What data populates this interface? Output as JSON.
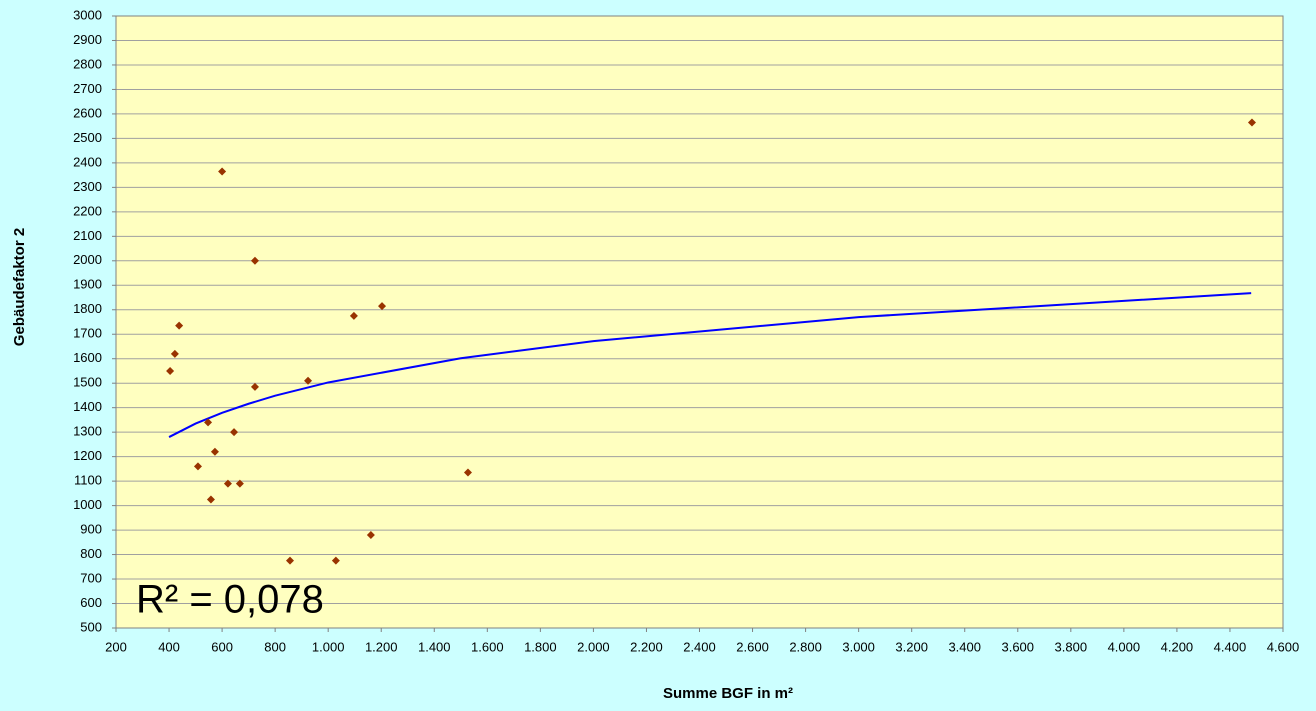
{
  "chart_data": {
    "type": "scatter",
    "x_label": "Summe BGF in m²",
    "y_label": "Gebäudefaktor 2",
    "annotation": "R² = 0,078",
    "color": "#993300",
    "trend_color": "#0000ff",
    "x": [
      404,
      422,
      438,
      509,
      547,
      558,
      573,
      600,
      622,
      645,
      667,
      724,
      724,
      856,
      924,
      1029,
      1097,
      1161,
      1203,
      1527,
      4483
    ],
    "values": [
      1550,
      1620,
      1735,
      1160,
      1340,
      1025,
      1220,
      2365,
      1090,
      1300,
      1090,
      2000,
      1485,
      775,
      1510,
      775,
      1775,
      880,
      1815,
      1135,
      2565
    ],
    "trendline": {
      "x": [
        400,
        500,
        600,
        700,
        800,
        1000,
        1500,
        2000,
        3000,
        4480
      ],
      "values": [
        1280,
        1335,
        1379,
        1416,
        1449,
        1503,
        1602,
        1672,
        1770,
        1868
      ]
    },
    "xlim": [
      200,
      4600
    ],
    "ylim": [
      500,
      3000
    ],
    "xticks": [
      200,
      400,
      600,
      800,
      {
        "value": 1000,
        "label": "1.000"
      },
      {
        "value": 1200,
        "label": "1.200"
      },
      {
        "value": 1400,
        "label": "1.400"
      },
      {
        "value": 1600,
        "label": "1.600"
      },
      {
        "value": 1800,
        "label": "1.800"
      },
      {
        "value": 2000,
        "label": "2.000"
      },
      {
        "value": 2200,
        "label": "2.200"
      },
      {
        "value": 2400,
        "label": "2.400"
      },
      {
        "value": 2600,
        "label": "2.600"
      },
      {
        "value": 2800,
        "label": "2.800"
      },
      {
        "value": 3000,
        "label": "3.000"
      },
      {
        "value": 3200,
        "label": "3.200"
      },
      {
        "value": 3400,
        "label": "3.400"
      },
      {
        "value": 3600,
        "label": "3.600"
      },
      {
        "value": 3800,
        "label": "3.800"
      },
      {
        "value": 4000,
        "label": "4.000"
      },
      {
        "value": 4200,
        "label": "4.200"
      },
      {
        "value": 4400,
        "label": "4.400"
      },
      {
        "value": 4600,
        "label": "4.600"
      }
    ],
    "yticks": [
      500,
      600,
      700,
      800,
      900,
      1000,
      1100,
      1200,
      1300,
      1400,
      1500,
      1600,
      1700,
      1800,
      1900,
      2000,
      2100,
      2200,
      2300,
      2400,
      2500,
      2600,
      2700,
      2800,
      2900,
      3000
    ],
    "grid": true
  }
}
